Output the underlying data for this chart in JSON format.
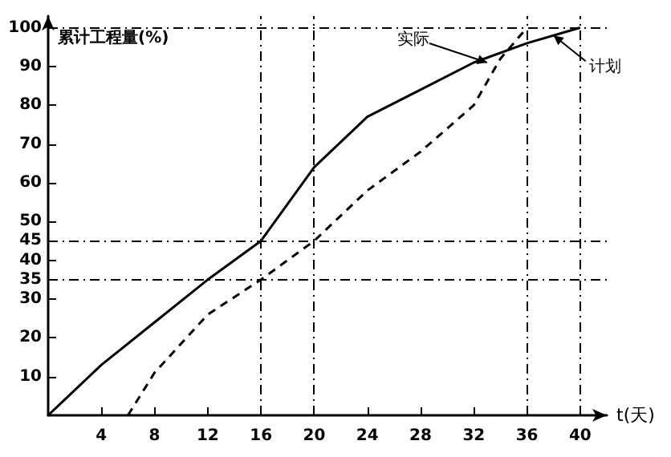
{
  "chart_data": {
    "type": "line",
    "xlabel": "t(天)",
    "ylabel": "累计工程量(%)",
    "x": [
      0,
      4,
      8,
      12,
      16,
      20,
      24,
      28,
      32,
      36,
      40
    ],
    "series": [
      {
        "color": "#000000",
        "line_style": "solid",
        "values": [
          0,
          13,
          24,
          35,
          45,
          64,
          77,
          84,
          91,
          96,
          100
        ]
      },
      {
        "color": "#000000",
        "line_style": "dashed",
        "x": [
          6,
          8,
          12,
          16,
          20,
          24,
          28,
          32,
          34,
          36
        ],
        "values": [
          0,
          11,
          26,
          35,
          45,
          58,
          68,
          80,
          92,
          100
        ]
      }
    ],
    "xlim": [
      0,
      42
    ],
    "ylim": [
      0,
      103
    ],
    "xticks": [
      4,
      8,
      12,
      16,
      20,
      24,
      28,
      32,
      36,
      40
    ],
    "yticks": [
      10,
      20,
      30,
      35,
      40,
      45,
      50,
      60,
      70,
      80,
      90,
      100
    ],
    "ref_lines": [
      {
        "axis": "y",
        "value": 100
      },
      {
        "axis": "y",
        "value": 45
      },
      {
        "axis": "y",
        "value": 35
      },
      {
        "axis": "x",
        "value": 16
      },
      {
        "axis": "x",
        "value": 20
      },
      {
        "axis": "x",
        "value": 36
      },
      {
        "axis": "x",
        "value": 40
      }
    ],
    "annotations": [
      {
        "text": "实际",
        "x": 33,
        "y": 91
      },
      {
        "text": "计划",
        "x": 38,
        "y": 98
      }
    ],
    "marker": "none"
  }
}
